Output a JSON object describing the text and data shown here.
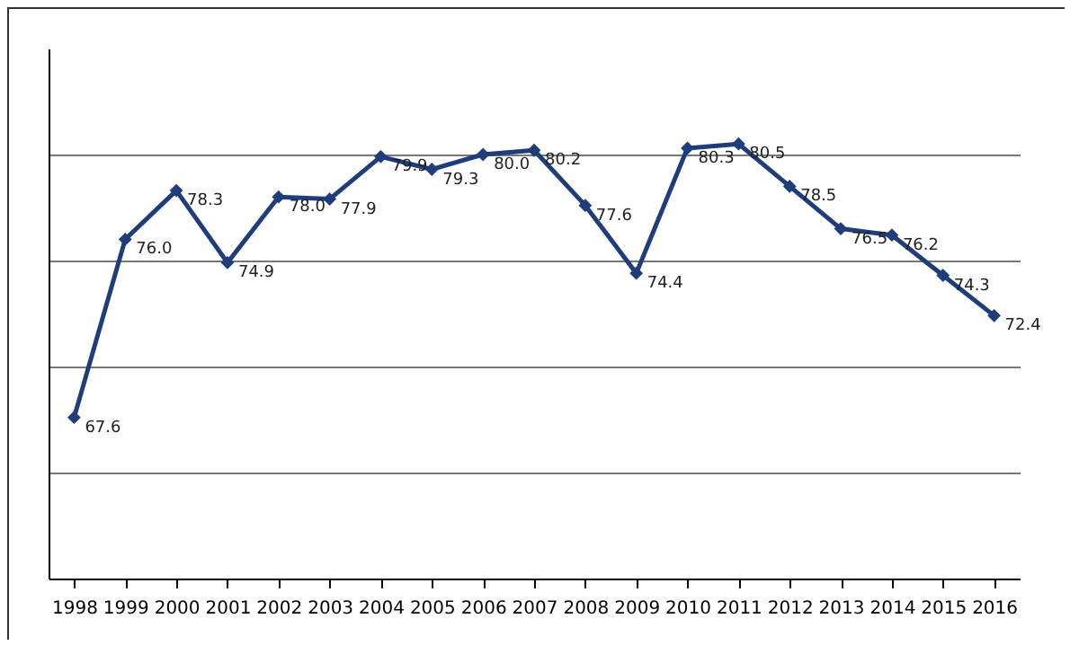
{
  "chart_data": {
    "type": "line",
    "categories": [
      "1998",
      "1999",
      "2000",
      "2001",
      "2002",
      "2003",
      "2004",
      "2005",
      "2006",
      "2007",
      "2008",
      "2009",
      "2010",
      "2011",
      "2012",
      "2013",
      "2014",
      "2015",
      "2016"
    ],
    "series": [
      {
        "color": "#1f3d7a",
        "values": [
          67.6,
          76.0,
          78.3,
          74.9,
          78.0,
          77.9,
          79.9,
          79.3,
          80.0,
          80.2,
          77.6,
          74.4,
          80.3,
          80.5,
          78.5,
          76.5,
          76.2,
          74.3,
          72.4
        ],
        "value_labels": [
          "67.6",
          "76.0",
          "78.3",
          "74.9",
          "78.0",
          "77.9",
          "79.9",
          "79.3",
          "80.0",
          "80.2",
          "77.6",
          "74.4",
          "80.3",
          "80.5",
          "78.5",
          "76.5",
          "76.2",
          "74.3",
          "72.4"
        ]
      }
    ],
    "ylim": [
      60,
      85
    ],
    "yticks": [
      {
        "value": 65,
        "label": null
      },
      {
        "value": 70,
        "label": null
      },
      {
        "value": 75,
        "label": null
      },
      {
        "value": 80,
        "label": null
      }
    ],
    "grid": "y",
    "tick_labels": "x",
    "marker": "diamond",
    "line_style": "solid",
    "legend": false
  }
}
